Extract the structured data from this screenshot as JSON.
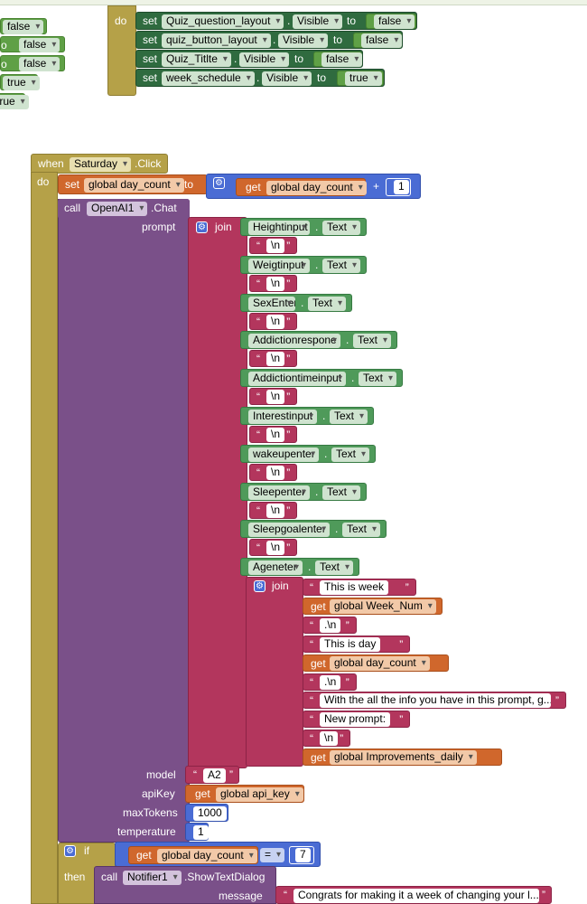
{
  "top_left_values": [
    "false",
    "false",
    "false",
    "true",
    "true"
  ],
  "top_do": {
    "do_label": "do",
    "rows": [
      {
        "set": "set",
        "component": "Quiz_question_layout",
        "prop": "Visible",
        "to": "to",
        "value": "false"
      },
      {
        "set": "set",
        "component": "quiz_button_layout",
        "prop": "Visible",
        "to": "to",
        "value": "false"
      },
      {
        "set": "set",
        "component": "Quiz_Titlte",
        "prop": "Visible",
        "to": "to",
        "value": "false"
      },
      {
        "set": "set",
        "component": "week_schedule",
        "prop": "Visible",
        "to": "to",
        "value": "true"
      }
    ]
  },
  "event": {
    "when": "when",
    "component": "Saturday",
    "event_name": ".Click",
    "do": "do",
    "set_kw": "set",
    "set_var": "global day_count",
    "to_kw": "to",
    "get_kw": "get",
    "get_var": "global day_count",
    "plus": "+",
    "one": "1",
    "call_kw": "call",
    "call_component": "OpenAI1",
    "call_method": ".Chat",
    "prompt_label": "prompt",
    "join_label": "join",
    "newline": "\\n",
    "dot": ".",
    "text_prop": "Text",
    "inputs": [
      "Heightinput",
      "Weigtinput",
      "SexEnter",
      "Addictionrespone",
      "Addictiontimeinput",
      "Interestinput",
      "wakeupenter",
      "Sleepenter",
      "Sleepgoalenter",
      "Ageneter"
    ],
    "inner_join_label": "join",
    "inner": [
      {
        "kind": "text",
        "value": "This is week "
      },
      {
        "kind": "get",
        "kw": "get",
        "value": "global Week_Num"
      },
      {
        "kind": "text",
        "value": ".\\n"
      },
      {
        "kind": "text",
        "value": "This is day "
      },
      {
        "kind": "get",
        "kw": "get",
        "value": "global day_count"
      },
      {
        "kind": "text",
        "value": ".\\n"
      },
      {
        "kind": "text",
        "value": "With the all the info you have in this prompt, g..."
      },
      {
        "kind": "text",
        "value": "New prompt: "
      },
      {
        "kind": "text",
        "value": "\\n"
      },
      {
        "kind": "get",
        "kw": "get",
        "value": "global Improvements_daily"
      }
    ],
    "model_label": "model",
    "model_value": "A2",
    "apikey_label": "apiKey",
    "apikey_get": "get",
    "apikey_var": "global api_key",
    "maxtokens_label": "maxTokens",
    "maxtokens_value": "1000",
    "temperature_label": "temperature",
    "temperature_value": "1",
    "if_label": "if",
    "if_get": "get",
    "if_var": "global day_count",
    "if_op": "=",
    "if_value": "7",
    "then_label": "then",
    "notifier_call": "call",
    "notifier_component": "Notifier1",
    "notifier_method": ".ShowTextDialog",
    "message_label": "message",
    "message_value": "Congrats for making it a week of changing your l..."
  }
}
